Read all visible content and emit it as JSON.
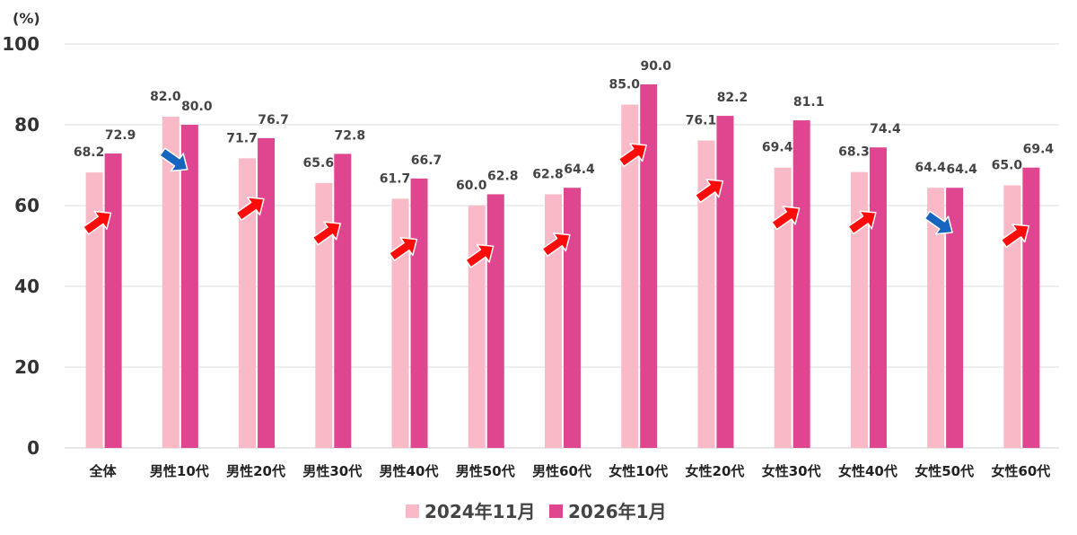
{
  "chart_data": {
    "type": "bar",
    "unit_label": "(%)",
    "ylim": [
      0,
      100
    ],
    "yticks": [
      "0",
      "20",
      "40",
      "60",
      "80",
      "100"
    ],
    "grid": true,
    "legend_position": "bottom",
    "categories": [
      "全体",
      "男性10代",
      "男性20代",
      "男性30代",
      "男性40代",
      "男性50代",
      "男性60代",
      "女性10代",
      "女性20代",
      "女性30代",
      "女性40代",
      "女性50代",
      "女性60代"
    ],
    "series": [
      {
        "name": "2024年11月",
        "color": "#f9b9c6",
        "values": [
          68.2,
          82.0,
          71.7,
          65.6,
          61.7,
          60.0,
          62.8,
          85.0,
          76.1,
          69.4,
          68.3,
          64.4,
          65.0
        ]
      },
      {
        "name": "2026年1月",
        "color": "#e0458f",
        "values": [
          72.9,
          80.0,
          76.7,
          72.8,
          66.7,
          62.8,
          64.4,
          90.0,
          82.2,
          81.1,
          74.4,
          64.4,
          69.4
        ]
      }
    ],
    "value_labels": [
      [
        "68.2",
        "82.0",
        "71.7",
        "65.6",
        "61.7",
        "60.0",
        "62.8",
        "85.0",
        "76.1",
        "69.4",
        "68.3",
        "64.4",
        "65.0"
      ],
      [
        "72.9",
        "80.0",
        "76.7",
        "72.8",
        "66.7",
        "62.8",
        "64.4",
        "90.0",
        "82.2",
        "81.1",
        "74.4",
        "64.4",
        "69.4"
      ]
    ],
    "trend_arrows": [
      "up",
      "down",
      "up",
      "up",
      "up",
      "up",
      "up",
      "up",
      "up",
      "up",
      "up",
      "down",
      "up"
    ],
    "arrow_colors": {
      "up": "#ff0a0a",
      "down": "#1565c0"
    }
  }
}
